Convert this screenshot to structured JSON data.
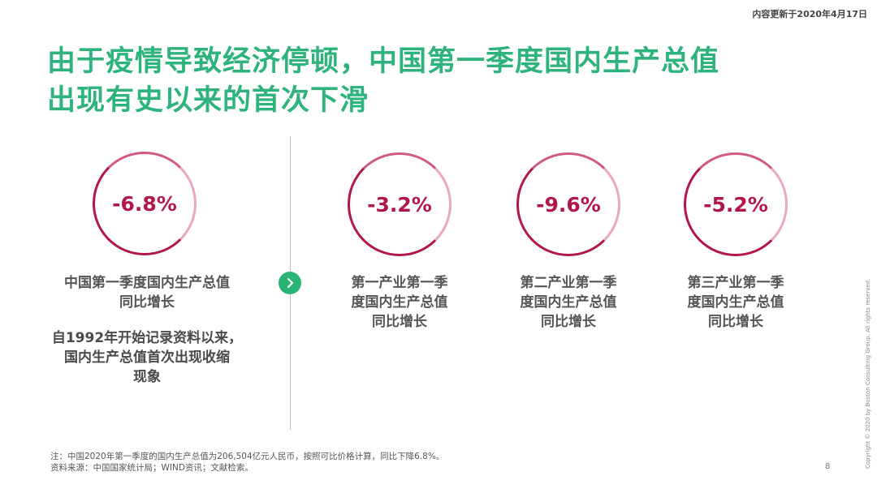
{
  "header": {
    "update_note": "内容更新于2020年4月17日"
  },
  "title": {
    "line1": "由于疫情导致经济停顿，中国第一季度国内生产总值",
    "line2": "出现有史以来的首次下滑"
  },
  "left_metric": {
    "value": "-6.8%",
    "label_line1": "中国第一季度国内生产总值",
    "label_line2": "同比增长",
    "note_line1": "自1992年开始记录资料以来，",
    "note_line2": "国内生产总值首次出现收缩",
    "note_line3": "现象"
  },
  "sectors": [
    {
      "value": "-3.2%",
      "label_line1": "第一产业第一季",
      "label_line2": "度国内生产总值",
      "label_line3": "同比增长"
    },
    {
      "value": "-9.6%",
      "label_line1": "第二产业第一季",
      "label_line2": "度国内生产总值",
      "label_line3": "同比增长"
    },
    {
      "value": "-5.2%",
      "label_line1": "第三产业第一季",
      "label_line2": "度国内生产总值",
      "label_line3": "同比增长"
    }
  ],
  "footer": {
    "note": "注：中国2020年第一季度的国内生产总值为206,504亿元人民币，按照可比价格计算，同比下降6.8%。",
    "source": "资料来源：中国国家统计局；WIND资讯；文献检索。",
    "page_number": "8",
    "copyright": "Copyright © 2020 by Boston Consulting Group. All rights reserved."
  },
  "colors": {
    "title_green": "#2db37b",
    "ring_crimson": "#b2174c",
    "arrow_green": "#29b473"
  },
  "icons": {
    "arrow": "chevron-right-icon"
  }
}
